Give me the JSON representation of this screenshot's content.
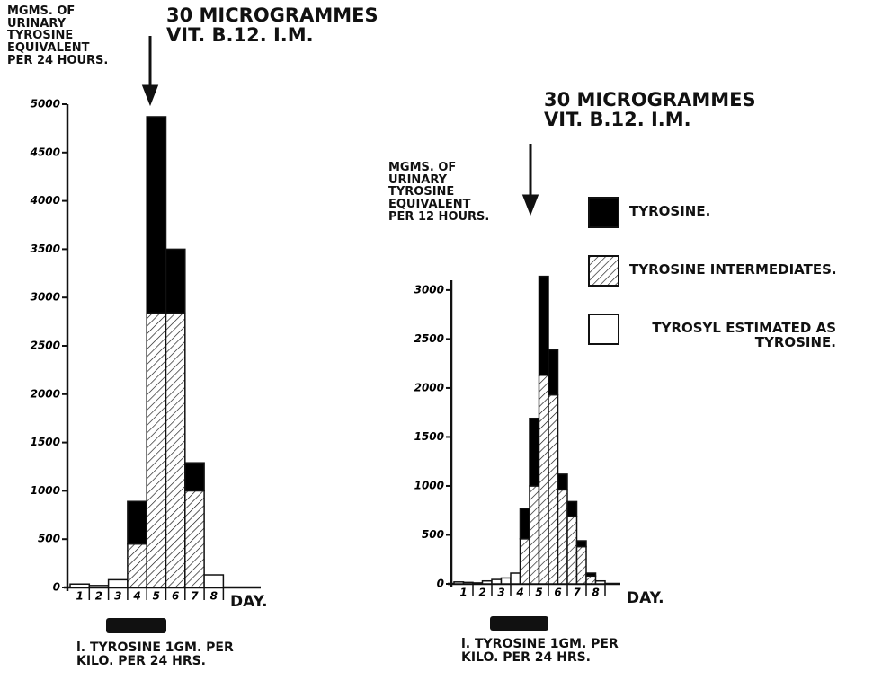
{
  "chart_data": [
    {
      "type": "bar",
      "stacked": true,
      "annotation": "30 MICROGRAMMES\nVIT. B.12. I.M.",
      "y_label": "MGMS. OF\nURINARY\nTYROSINE\nEQUIVALENT\nPER 24 HOURS.",
      "x_label": "DAY.",
      "note": "l. TYROSINE   1GM. PER\nKILO. PER 24 HRS.",
      "categories": [
        "1",
        "2",
        "3",
        "4",
        "5",
        "6",
        "7",
        "8"
      ],
      "series": [
        {
          "color": "#ffffff",
          "values": [
            35,
            20,
            80,
            null,
            null,
            null,
            null,
            130
          ]
        },
        {
          "color": "#ffffff",
          "pattern": "hatch",
          "values": [
            null,
            null,
            null,
            450,
            2840,
            2840,
            1000,
            null
          ]
        },
        {
          "color": "#000000",
          "values": [
            null,
            null,
            null,
            440,
            2030,
            660,
            290,
            null
          ]
        }
      ],
      "ylim": [
        0,
        5000
      ],
      "yticks": [
        0,
        500,
        1000,
        1500,
        2000,
        2500,
        3000,
        3500,
        4000,
        4500,
        5000
      ]
    },
    {
      "type": "bar",
      "stacked": true,
      "annotation": "30 MICROGRAMMES\nVIT. B.12. I.M.",
      "y_label": "MGMS. OF\nURINARY\nTYROSINE\nEQUIVALENT\nPER 12 HOURS.",
      "x_label": "DAY.",
      "note": "l. TYROSINE   1GM. PER\nKILO. PER 24 HRS.",
      "categories": [
        "1",
        null,
        "2",
        null,
        "3",
        null,
        "4",
        null,
        "5",
        null,
        "6",
        null,
        "7",
        null,
        "8",
        null
      ],
      "series": [
        {
          "name": "TYROSYL ESTIMATED AS TYROSINE.",
          "color": "#ffffff",
          "values": [
            20,
            15,
            10,
            30,
            45,
            60,
            110,
            null,
            null,
            null,
            null,
            null,
            null,
            null,
            null,
            30
          ]
        },
        {
          "name": "TYROSINE INTERMEDIATES.",
          "color": "#ffffff",
          "pattern": "hatch",
          "values": [
            null,
            null,
            null,
            null,
            null,
            null,
            null,
            460,
            1000,
            2130,
            1930,
            960,
            690,
            380,
            80,
            null
          ]
        },
        {
          "name": "TYROSINE.",
          "color": "#000000",
          "values": [
            null,
            null,
            null,
            null,
            null,
            null,
            null,
            310,
            690,
            1010,
            460,
            160,
            150,
            60,
            30,
            null
          ]
        }
      ],
      "ylim": [
        0,
        3100
      ],
      "yticks": [
        0,
        500,
        1000,
        1500,
        2000,
        2500,
        3000
      ],
      "legend": "right"
    }
  ]
}
